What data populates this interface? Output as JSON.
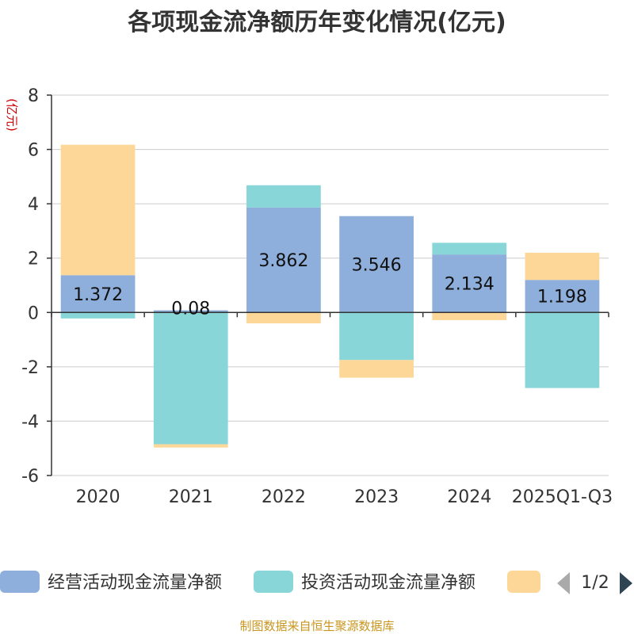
{
  "chart_data": {
    "type": "bar",
    "stacked": true,
    "title": "各项现金流净额历年变化情况(亿元)",
    "ylabel": "(亿元)",
    "xlabel": "",
    "ylim": [
      -6,
      8
    ],
    "yticks": [
      -6,
      -4,
      -2,
      0,
      2,
      4,
      6,
      8
    ],
    "categories": [
      "2020",
      "2021",
      "2022",
      "2023",
      "2024",
      "2025Q1-Q3"
    ],
    "series": [
      {
        "name": "经营活动现金流量净额",
        "color": "#8eaedb",
        "values": [
          1.372,
          0.08,
          3.862,
          3.546,
          2.134,
          1.198
        ],
        "labels": [
          "1.372",
          "0.08",
          "3.862",
          "3.546",
          "2.134",
          "1.198"
        ]
      },
      {
        "name": "投资活动现金流量净额",
        "color": "#88d6d8",
        "values": [
          -0.22,
          -4.85,
          0.82,
          -1.75,
          0.43,
          -2.78
        ]
      },
      {
        "name": "",
        "color": "#fdd797",
        "values": [
          4.8,
          -0.12,
          -0.4,
          -0.65,
          -0.28,
          1.0
        ]
      }
    ],
    "legend": {
      "position": "bottom",
      "page": "1/2"
    },
    "source": "制图数据来自恒生聚源数据库"
  }
}
